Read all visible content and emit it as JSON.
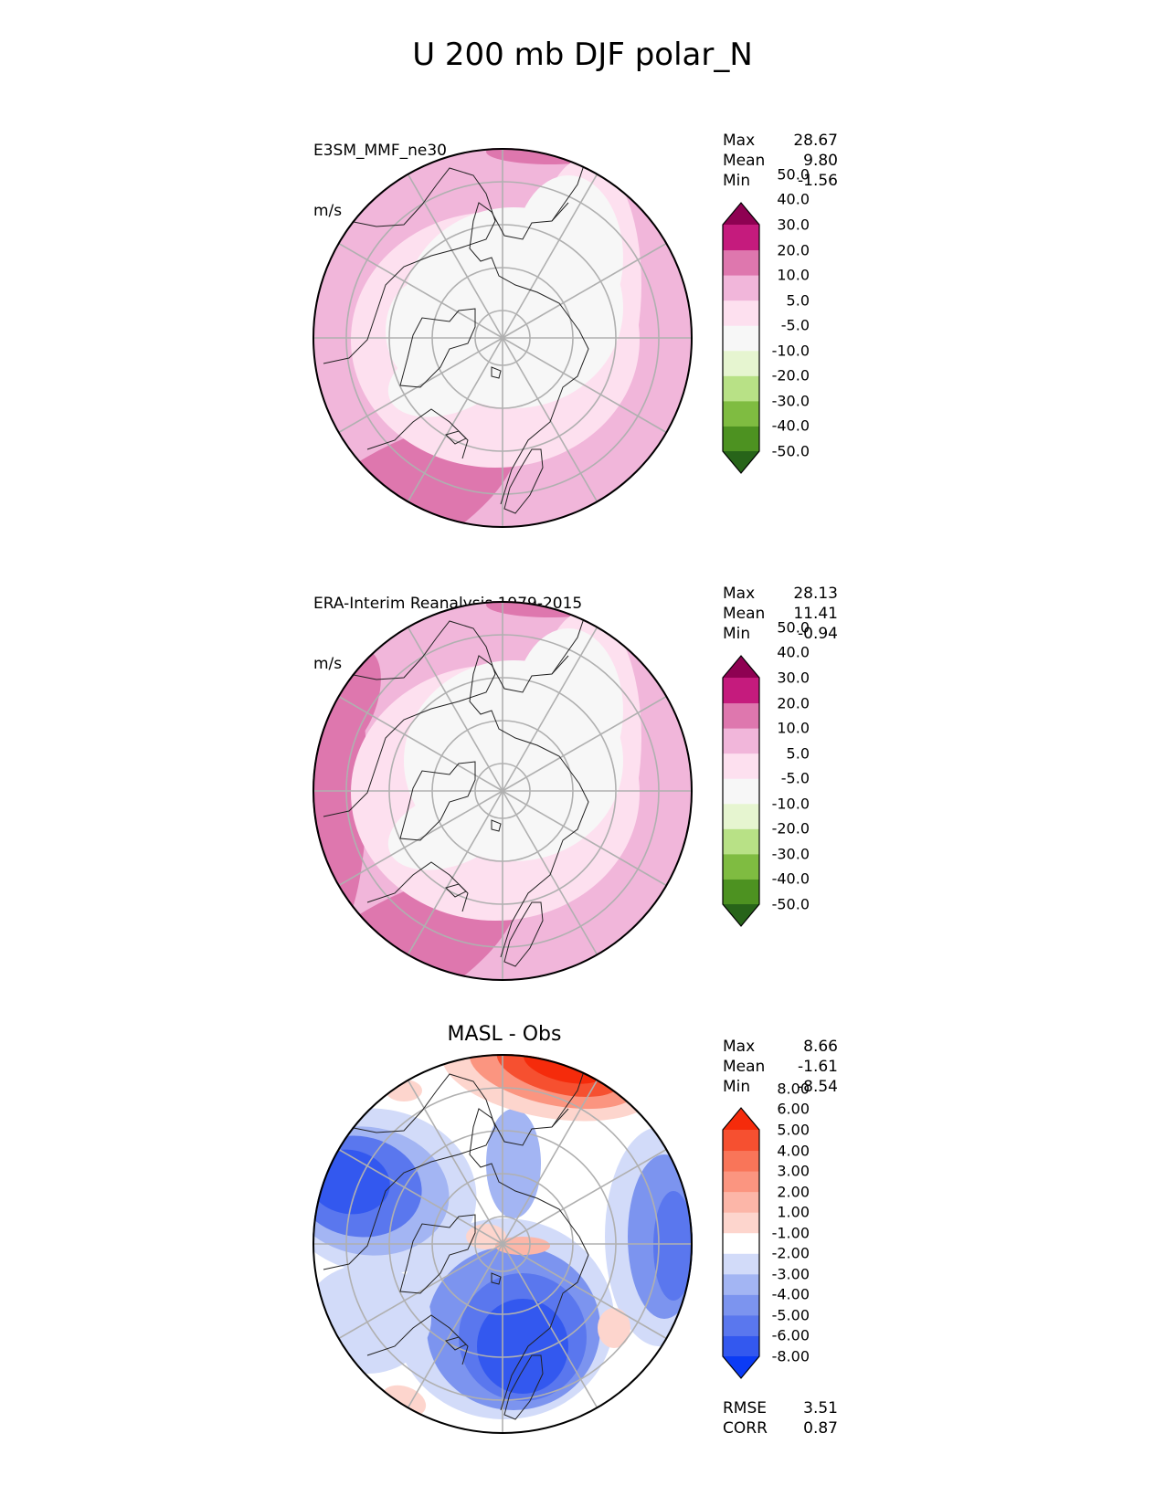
{
  "title": "U 200 mb DJF polar_N",
  "panels": [
    {
      "name": "test",
      "label_line1": "E3SM_MMF_ne30",
      "label_line2": "m/s",
      "panel_title": "",
      "stats": [
        {
          "label": "Max",
          "value": "28.67"
        },
        {
          "label": "Mean",
          "value": "9.80"
        },
        {
          "label": "Min",
          "value": "-1.56"
        }
      ],
      "colorbar": {
        "colors": [
          "#276419",
          "#4d9221",
          "#7fbc41",
          "#b8e186",
          "#e6f5d0",
          "#f7f7f7",
          "#fde0ef",
          "#f1b6da",
          "#de77ae",
          "#c51b7d",
          "#8e0152"
        ],
        "levels": [
          "-50.0",
          "-40.0",
          "-30.0",
          "-20.0",
          "-10.0",
          "-5.0",
          "5.0",
          "10.0",
          "20.0",
          "30.0",
          "40.0",
          "50.0"
        ]
      },
      "footer": []
    },
    {
      "name": "reference",
      "label_line1": "ERA-Interim Reanalysis 1979-2015",
      "label_line2": "m/s",
      "panel_title": "",
      "stats": [
        {
          "label": "Max",
          "value": "28.13"
        },
        {
          "label": "Mean",
          "value": "11.41"
        },
        {
          "label": "Min",
          "value": "-0.94"
        }
      ],
      "colorbar": {
        "colors": [
          "#276419",
          "#4d9221",
          "#7fbc41",
          "#b8e186",
          "#e6f5d0",
          "#f7f7f7",
          "#fde0ef",
          "#f1b6da",
          "#de77ae",
          "#c51b7d",
          "#8e0152"
        ],
        "levels": [
          "-50.0",
          "-40.0",
          "-30.0",
          "-20.0",
          "-10.0",
          "-5.0",
          "5.0",
          "10.0",
          "20.0",
          "30.0",
          "40.0",
          "50.0"
        ]
      },
      "footer": []
    },
    {
      "name": "difference",
      "label_line1": "",
      "label_line2": "",
      "panel_title": "MASL - Obs",
      "stats": [
        {
          "label": "Max",
          "value": "8.66"
        },
        {
          "label": "Mean",
          "value": "-1.61"
        },
        {
          "label": "Min",
          "value": "-8.54"
        }
      ],
      "colorbar": {
        "colors": [
          "#0b3bf5",
          "#3358ef",
          "#5a77ee",
          "#7c94ef",
          "#a3b5f3",
          "#d2dbf9",
          "#ffffff",
          "#fdd5cd",
          "#fcb6a8",
          "#fb9580",
          "#f97559",
          "#f65030",
          "#f52b0b"
        ],
        "levels": [
          "-8.00",
          "-6.00",
          "-5.00",
          "-4.00",
          "-3.00",
          "-2.00",
          "-1.00",
          "1.00",
          "2.00",
          "3.00",
          "4.00",
          "5.00",
          "6.00",
          "8.00"
        ]
      },
      "footer": [
        {
          "label": "RMSE",
          "value": "3.51"
        },
        {
          "label": "CORR",
          "value": "0.87"
        }
      ]
    }
  ],
  "chart_data": {
    "type": "heatmap",
    "projection": "north polar stereographic",
    "variable": "U 200 mb",
    "season": "DJF",
    "grid": true,
    "summary": [
      {
        "panel": "E3SM_MMF_ne30",
        "units": "m/s",
        "max": 28.67,
        "mean": 9.8,
        "min": -1.56
      },
      {
        "panel": "ERA-Interim Reanalysis 1979-2015",
        "units": "m/s",
        "max": 28.13,
        "mean": 11.41,
        "min": -0.94
      },
      {
        "panel": "MASL - Obs",
        "max": 8.66,
        "mean": -1.61,
        "min": -8.54,
        "rmse": 3.51,
        "corr": 0.87
      }
    ]
  }
}
